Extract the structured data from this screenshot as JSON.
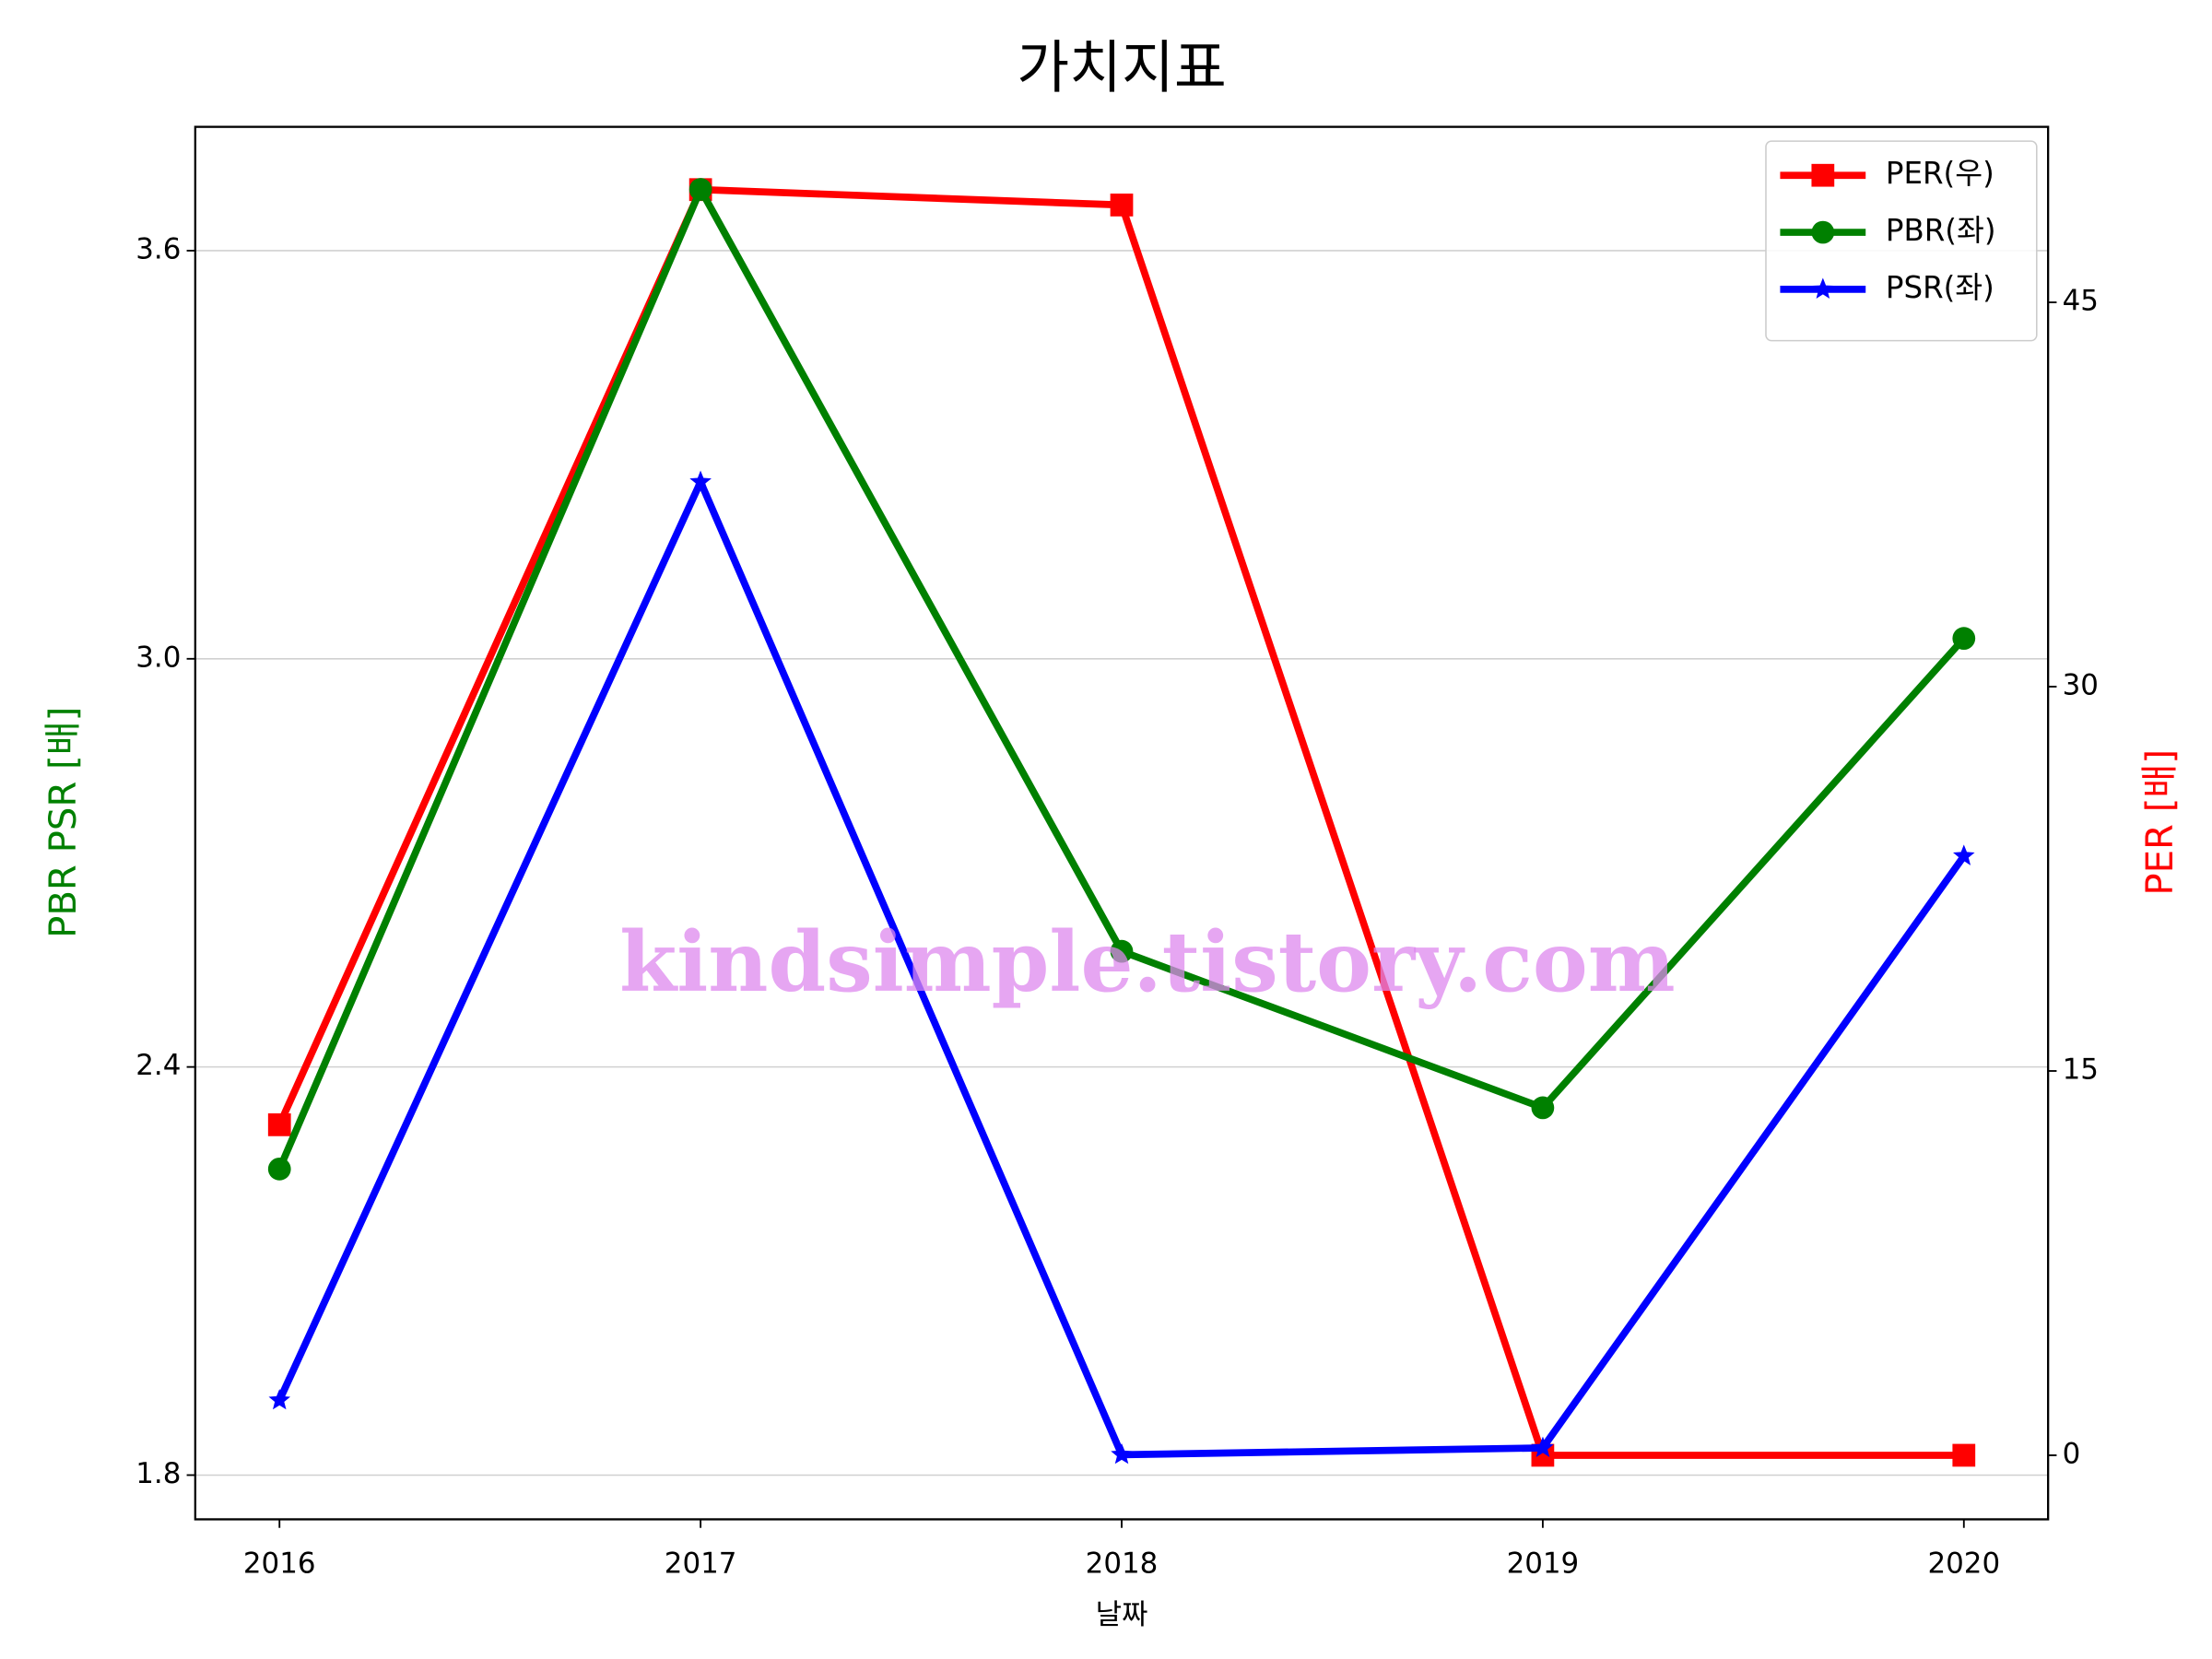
{
  "chart_data": {
    "type": "line",
    "title": "가치지표",
    "xlabel": "날짜",
    "ylabel": "PBR PSR [배]",
    "y2label": "PER [배]",
    "ylabel_color": "green",
    "y2label_color": "red",
    "x": [
      2016,
      2017,
      2018,
      2019,
      2020
    ],
    "xlim": [
      2015.8,
      2020.2
    ],
    "xticks": [
      2016,
      2017,
      2018,
      2019,
      2020
    ],
    "ylim": [
      1.735,
      3.782
    ],
    "yticks": [
      {
        "value": 1.8,
        "label": "1.8"
      },
      2.4,
      {
        "value": 3.0,
        "label": "3.0"
      },
      3.6
    ],
    "y2lim": [
      -2.5,
      51.85
    ],
    "y2ticks": [
      0,
      15,
      30,
      45
    ],
    "grid": true,
    "legend": "upper right",
    "annotation": "kindsimple.tistory.com",
    "series": [
      {
        "name": "PER(우)",
        "color": "#ff0000",
        "marker": "square",
        "axis": "y2",
        "values": [
          12.9,
          49.4,
          48.8,
          0,
          0
        ]
      },
      {
        "name": "PBR(좌)",
        "color": "#008000",
        "marker": "circle",
        "values": [
          2.25,
          3.69,
          2.57,
          2.34,
          3.03
        ]
      },
      {
        "name": "PSR(좌)",
        "color": "#0000ff",
        "marker": "star",
        "values": [
          1.91,
          3.26,
          1.83,
          1.84,
          2.71
        ]
      }
    ]
  }
}
